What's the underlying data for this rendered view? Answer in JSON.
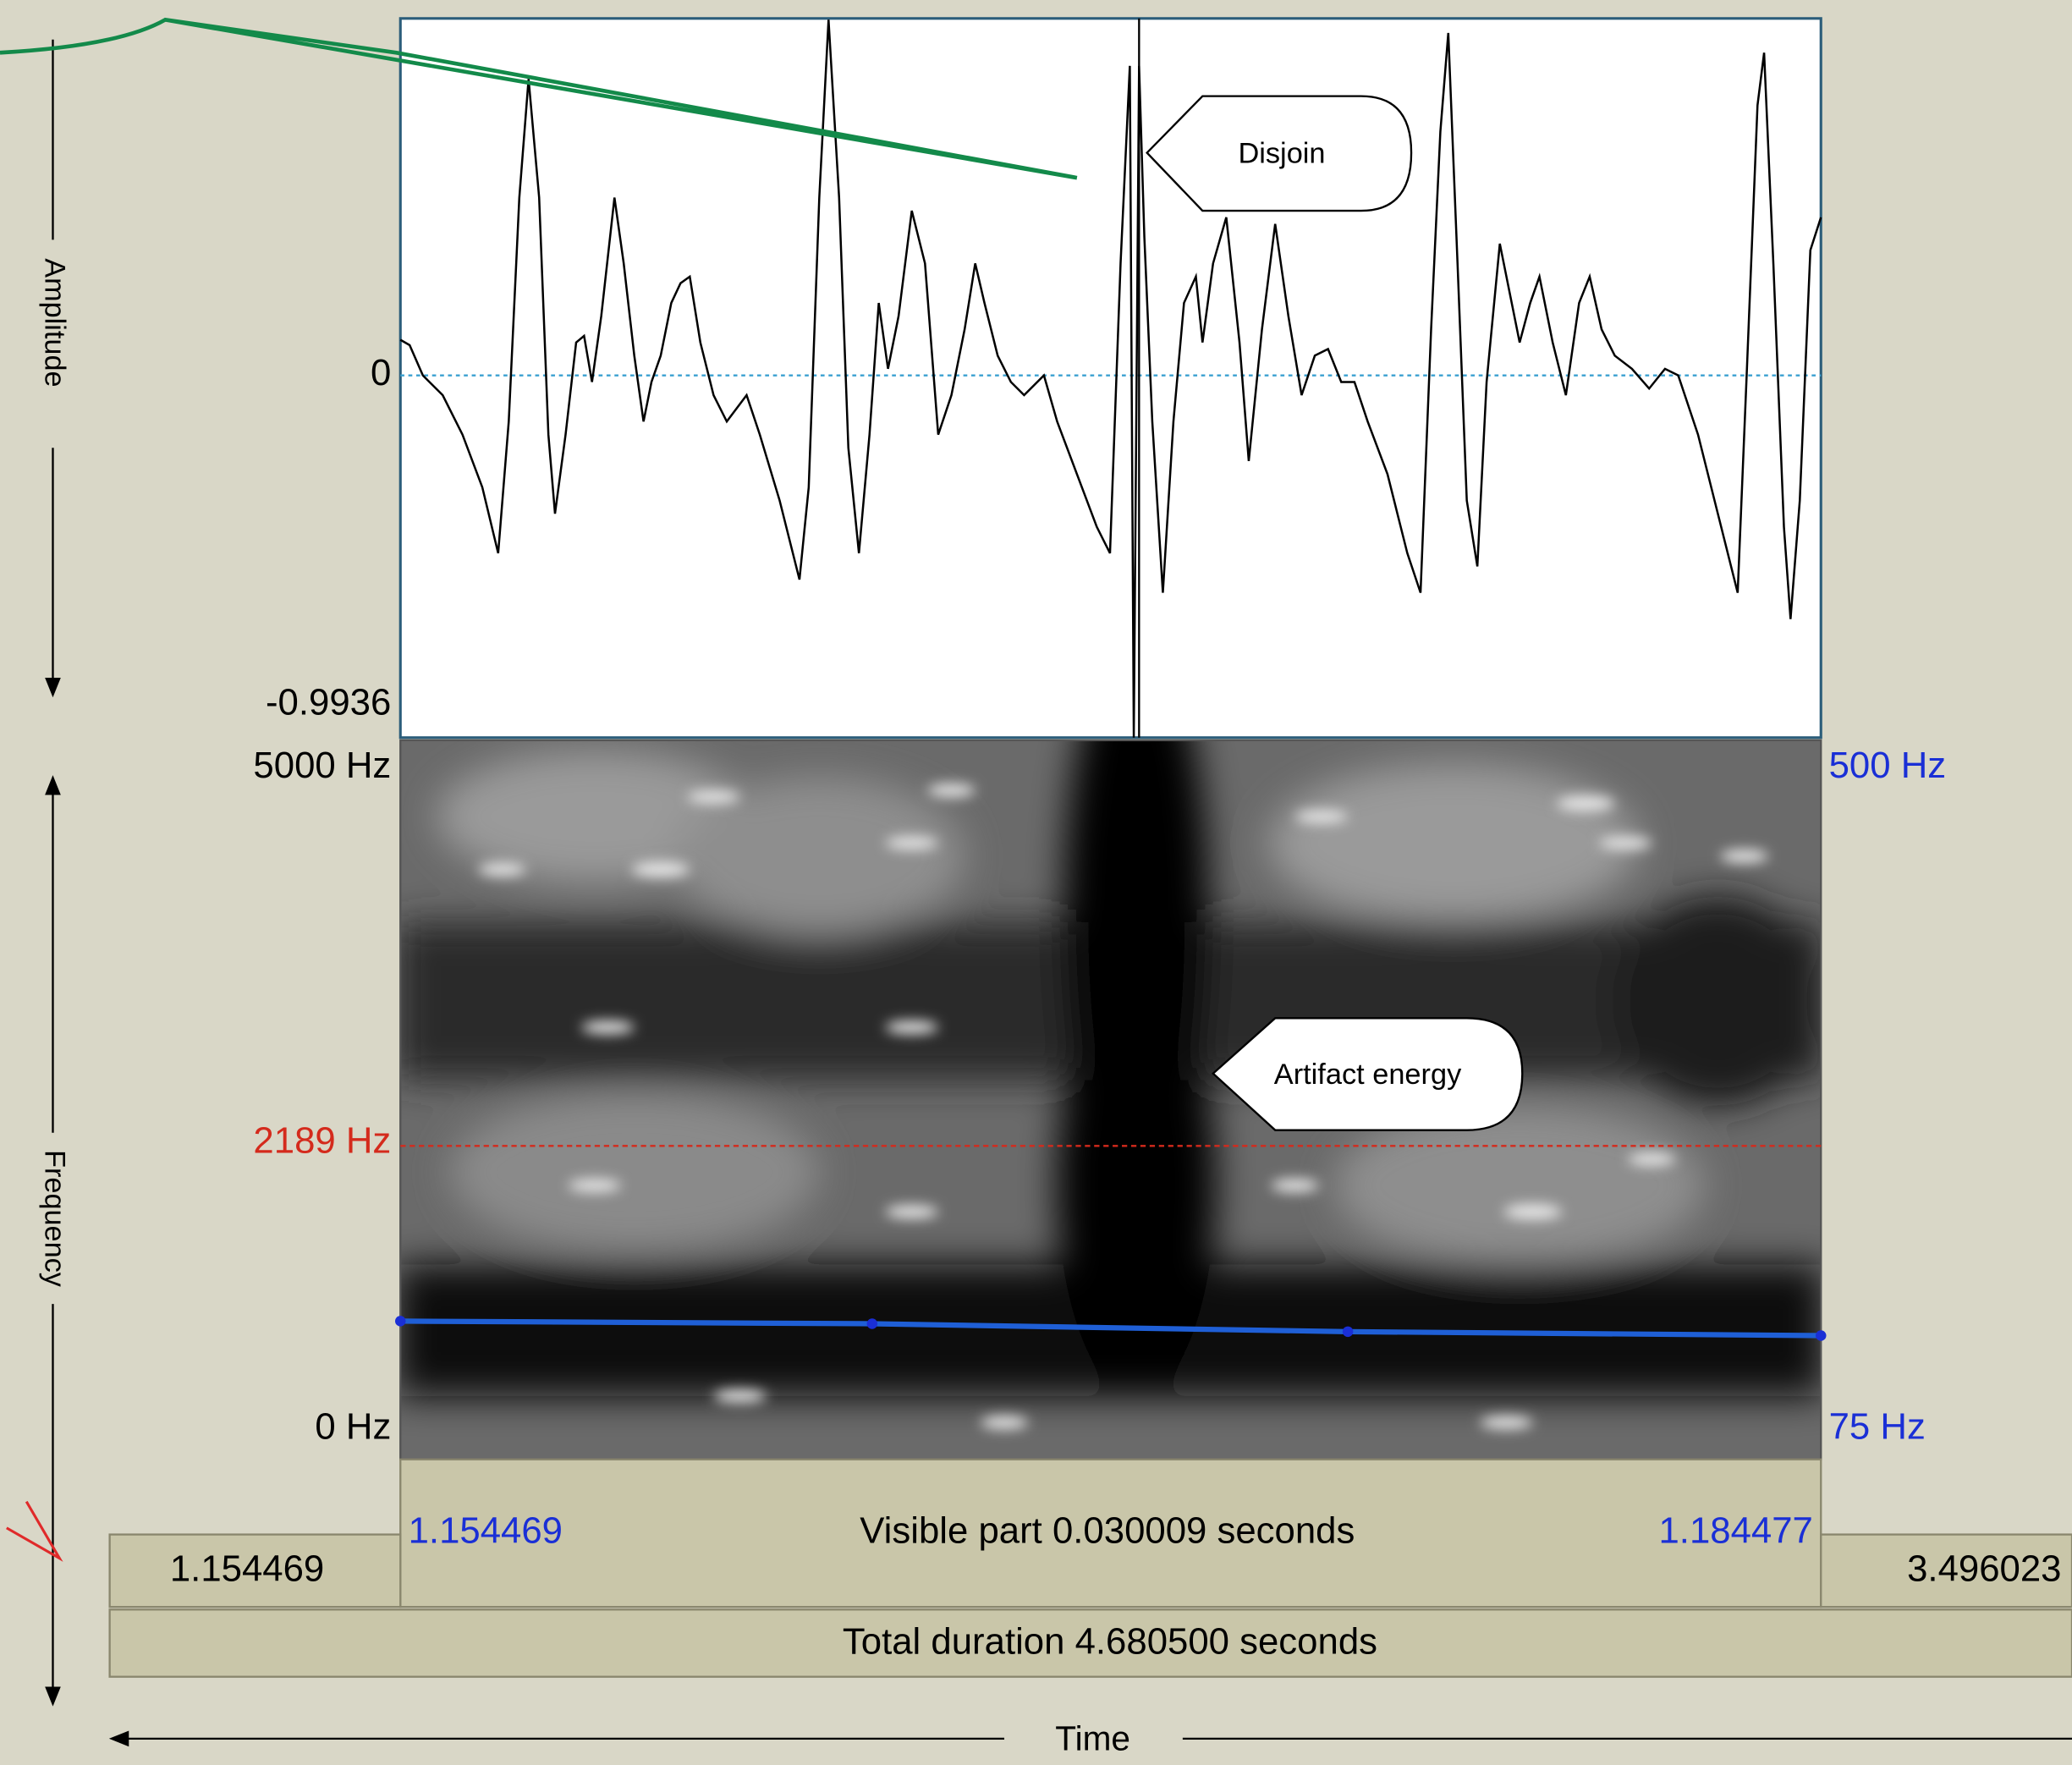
{
  "amplitude_axis": {
    "label": "Amplitude",
    "ticks": [
      "0",
      "-0.9936"
    ]
  },
  "frequency_axis": {
    "label": "Frequency",
    "left_ticks": [
      "5000 Hz",
      "2189 Hz",
      "0 Hz"
    ],
    "right_ticks": [
      "500 Hz",
      "75 Hz"
    ]
  },
  "callouts": [
    "Disjoin",
    "Artifact energy"
  ],
  "time_bar": {
    "left_outside": "1.154469",
    "visible_start": "1.154469",
    "visible_part": "Visible part 0.030009 seconds",
    "visible_end": "1.184477",
    "right_outside": "3.496023",
    "total": "Total duration 4.680500 seconds"
  },
  "time_axis": {
    "label": "Time"
  }
}
